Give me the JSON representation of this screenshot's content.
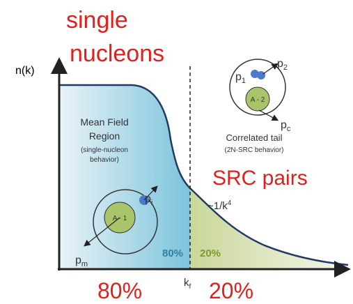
{
  "labels": {
    "top_left": [
      "single",
      "nucleons"
    ],
    "y_axis": "n(k)",
    "right_mid": "SRC pairs",
    "bottom_left": "80%",
    "bottom_right": "20%"
  },
  "diagram": {
    "mean_field": {
      "title": [
        "Mean Field",
        "Region"
      ],
      "note": [
        "(single-nucleon",
        "behavior)"
      ],
      "core": "A - 1",
      "p_out": {
        "symbol": "p",
        "sub": "i"
      },
      "p_miss": {
        "symbol": "p",
        "sub": "m"
      }
    },
    "tail": {
      "title": "Correlated tail",
      "note": "(2N-SRC behavior)",
      "core": "A - 2",
      "p1": {
        "symbol": "p",
        "sub": "1"
      },
      "p2": {
        "symbol": "p",
        "sub": "2"
      },
      "pc": {
        "symbol": "p",
        "sub": "c"
      }
    },
    "fraction_left": "80%",
    "fraction_right": "20%",
    "tail_law": {
      "text": "~1/k",
      "sup": "4"
    },
    "kf": {
      "symbol": "k",
      "sub": "f"
    }
  }
}
